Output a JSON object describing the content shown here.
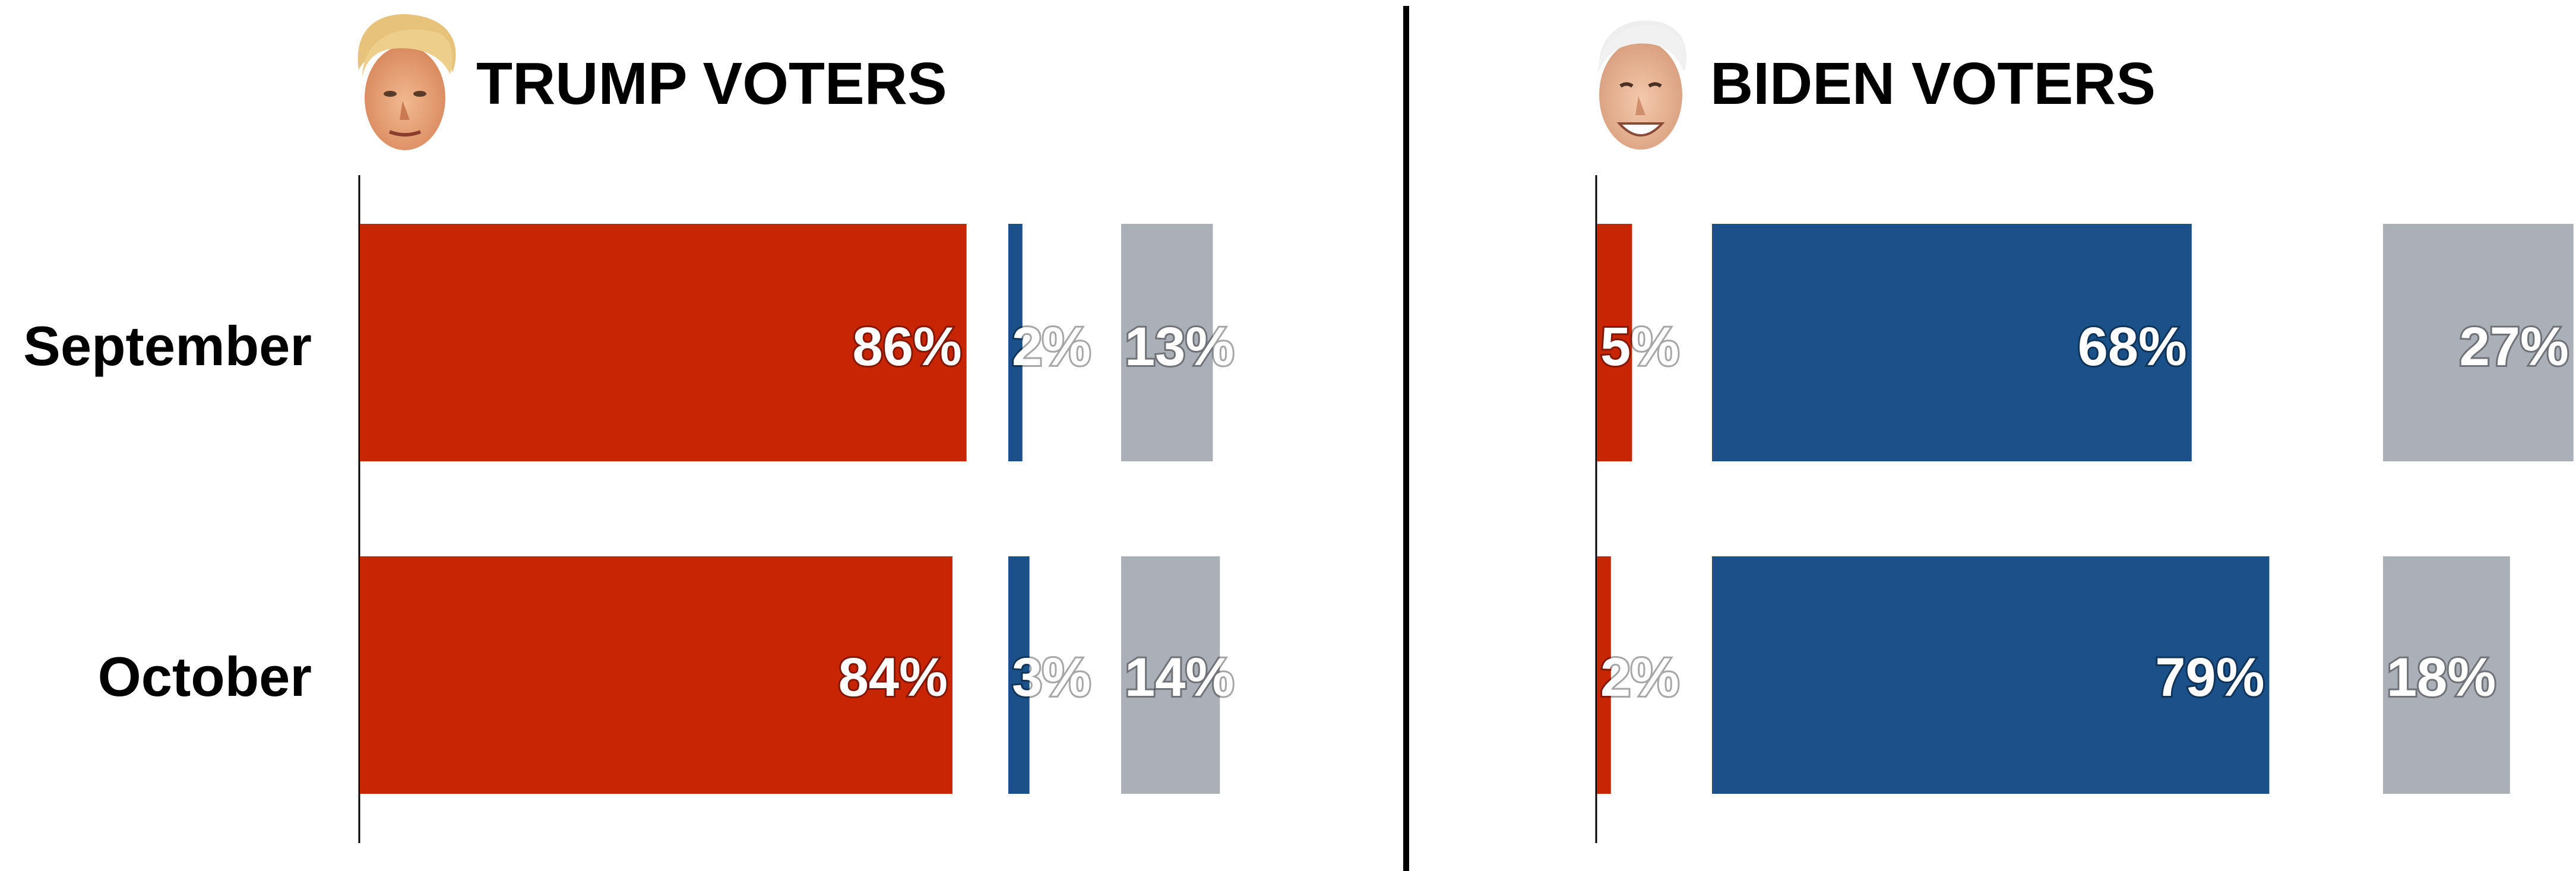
{
  "colors": {
    "trump": "#c82505",
    "biden": "#1a5189",
    "other": "#abb0b7",
    "divider": "#000000",
    "axis": "#000000"
  },
  "chart_data": [
    {
      "type": "bar",
      "orientation": "horizontal",
      "layout": "split-columns",
      "title": "TRUMP VOTERS",
      "icon": "trump-face-icon",
      "categories": [
        "September",
        "October"
      ],
      "series": [
        {
          "key": "trump",
          "values": [
            86,
            84
          ],
          "labels": [
            "86%",
            "84%"
          ]
        },
        {
          "key": "biden",
          "values": [
            2,
            3
          ],
          "labels": [
            "2%",
            "3%"
          ]
        },
        {
          "key": "other",
          "values": [
            13,
            14
          ],
          "labels": [
            "13%",
            "14%"
          ]
        }
      ],
      "unit": "%"
    },
    {
      "type": "bar",
      "orientation": "horizontal",
      "layout": "split-columns",
      "title": "BIDEN VOTERS",
      "icon": "biden-face-icon",
      "categories": [
        "September",
        "October"
      ],
      "series": [
        {
          "key": "trump",
          "values": [
            5,
            2
          ],
          "labels": [
            "5%",
            "2%"
          ]
        },
        {
          "key": "biden",
          "values": [
            68,
            79
          ],
          "labels": [
            "68%",
            "79%"
          ]
        },
        {
          "key": "other",
          "values": [
            27,
            18
          ],
          "labels": [
            "27%",
            "18%"
          ]
        }
      ],
      "unit": "%"
    }
  ]
}
